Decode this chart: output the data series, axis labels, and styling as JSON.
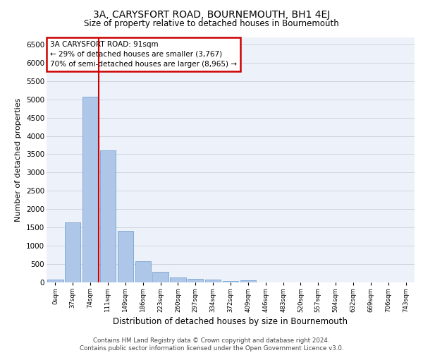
{
  "title": "3A, CARYSFORT ROAD, BOURNEMOUTH, BH1 4EJ",
  "subtitle": "Size of property relative to detached houses in Bournemouth",
  "xlabel": "Distribution of detached houses by size in Bournemouth",
  "ylabel": "Number of detached properties",
  "footer_line1": "Contains HM Land Registry data © Crown copyright and database right 2024.",
  "footer_line2": "Contains public sector information licensed under the Open Government Licence v3.0.",
  "annotation_title": "3A CARYSFORT ROAD: 91sqm",
  "annotation_line1": "← 29% of detached houses are smaller (3,767)",
  "annotation_line2": "70% of semi-detached houses are larger (8,965) →",
  "bar_labels": [
    "0sqm",
    "37sqm",
    "74sqm",
    "111sqm",
    "149sqm",
    "186sqm",
    "223sqm",
    "260sqm",
    "297sqm",
    "334sqm",
    "372sqm",
    "409sqm",
    "446sqm",
    "483sqm",
    "520sqm",
    "557sqm",
    "594sqm",
    "632sqm",
    "669sqm",
    "706sqm",
    "743sqm"
  ],
  "bar_values": [
    70,
    1630,
    5080,
    3600,
    1410,
    580,
    290,
    140,
    100,
    70,
    45,
    50,
    0,
    0,
    0,
    0,
    0,
    0,
    0,
    0,
    0
  ],
  "bar_color": "#aec6e8",
  "bar_edge_color": "#6699cc",
  "vline_color": "#cc0000",
  "annotation_box_color": "#cc0000",
  "ylim": [
    0,
    6700
  ],
  "yticks": [
    0,
    500,
    1000,
    1500,
    2000,
    2500,
    3000,
    3500,
    4000,
    4500,
    5000,
    5500,
    6000,
    6500
  ],
  "grid_color": "#c8d0dc",
  "bg_color": "#edf2fa",
  "vline_position": 2.46
}
